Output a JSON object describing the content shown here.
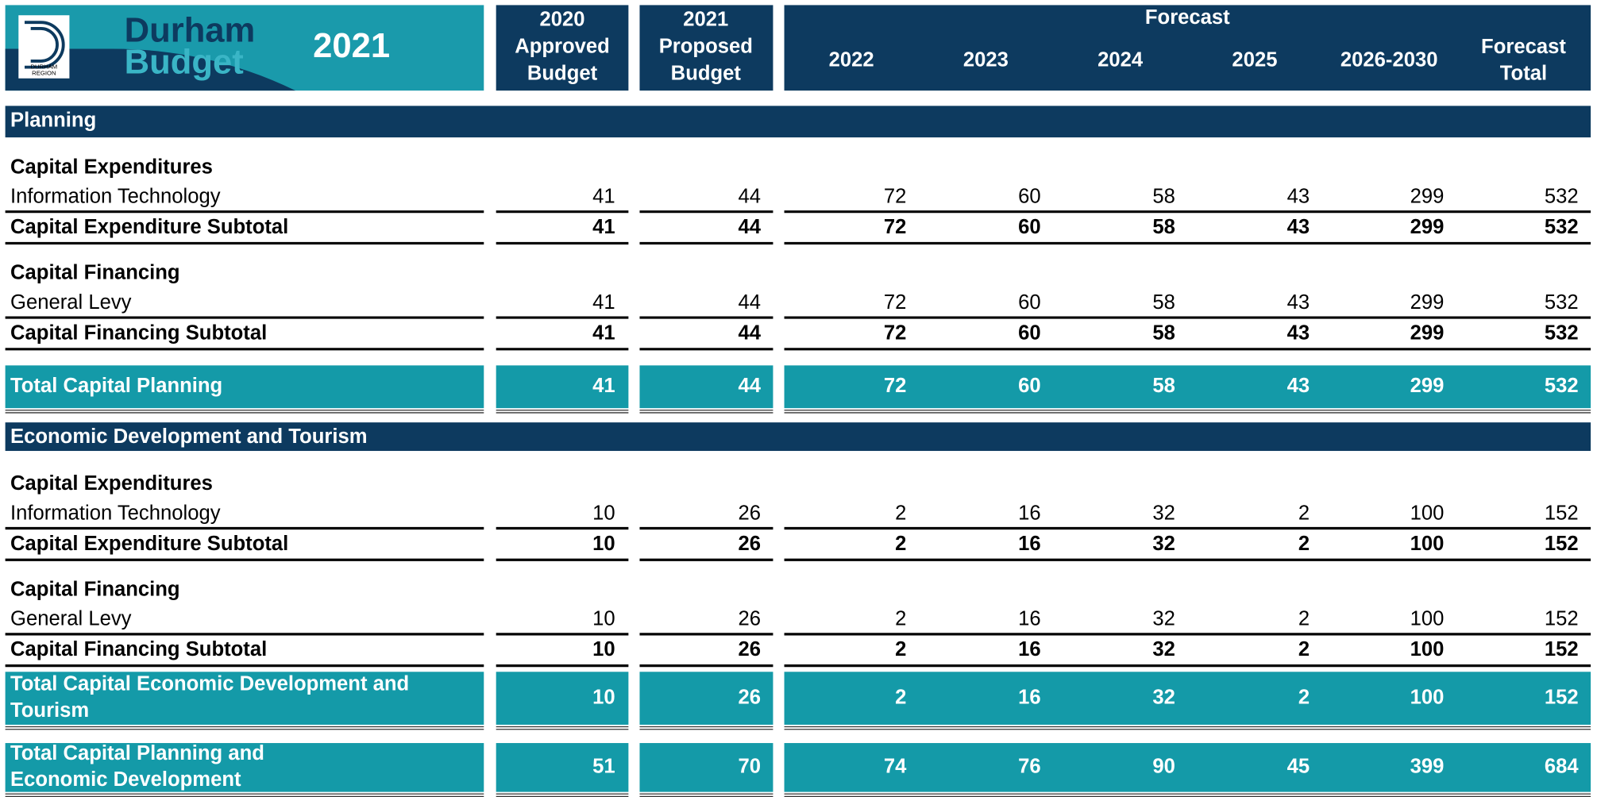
{
  "header": {
    "logo": [
      "DURHAM",
      "REGION"
    ],
    "title": [
      "Durham",
      "Budget"
    ],
    "year": "2021",
    "columns": [
      [
        "2020",
        "Approved",
        "Budget"
      ],
      [
        "2021",
        "Proposed",
        "Budget"
      ]
    ],
    "forecast_group": "Forecast",
    "forecast_columns": [
      "2022",
      "2023",
      "2024",
      "2025",
      "2026-2030"
    ],
    "forecast_total": [
      "Forecast",
      "Total"
    ]
  },
  "sections": [
    {
      "title": "Planning",
      "groups": [
        {
          "heading": "Capital Expenditures",
          "rows": [
            {
              "label": "Information Technology",
              "values": [
                41,
                44,
                72,
                60,
                58,
                43,
                299,
                532
              ]
            }
          ],
          "subtotal": {
            "label": "Capital Expenditure Subtotal",
            "values": [
              41,
              44,
              72,
              60,
              58,
              43,
              299,
              532
            ]
          }
        },
        {
          "heading": "Capital Financing",
          "rows": [
            {
              "label": "General Levy",
              "values": [
                41,
                44,
                72,
                60,
                58,
                43,
                299,
                532
              ]
            }
          ],
          "subtotal": {
            "label": "Capital Financing Subtotal",
            "values": [
              41,
              44,
              72,
              60,
              58,
              43,
              299,
              532
            ]
          }
        }
      ],
      "total": {
        "label": [
          "Total Capital Planning"
        ],
        "values": [
          41,
          44,
          72,
          60,
          58,
          43,
          299,
          532
        ]
      }
    },
    {
      "title": "Economic Development and Tourism",
      "groups": [
        {
          "heading": "Capital Expenditures",
          "rows": [
            {
              "label": "Information Technology",
              "values": [
                10,
                26,
                2,
                16,
                32,
                2,
                100,
                152
              ]
            }
          ],
          "subtotal": {
            "label": "Capital Expenditure Subtotal",
            "values": [
              10,
              26,
              2,
              16,
              32,
              2,
              100,
              152
            ]
          }
        },
        {
          "heading": "Capital Financing",
          "rows": [
            {
              "label": "General Levy",
              "values": [
                10,
                26,
                2,
                16,
                32,
                2,
                100,
                152
              ]
            }
          ],
          "subtotal": {
            "label": "Capital Financing Subtotal",
            "values": [
              10,
              26,
              2,
              16,
              32,
              2,
              100,
              152
            ]
          }
        }
      ],
      "total": {
        "label": [
          "Total Capital Economic Development and",
          "Tourism"
        ],
        "values": [
          10,
          26,
          2,
          16,
          32,
          2,
          100,
          152
        ]
      }
    }
  ],
  "grand_total": {
    "label": [
      "Total Capital Planning and",
      "Economic Development"
    ],
    "values": [
      51,
      70,
      74,
      76,
      90,
      45,
      399,
      684
    ]
  }
}
